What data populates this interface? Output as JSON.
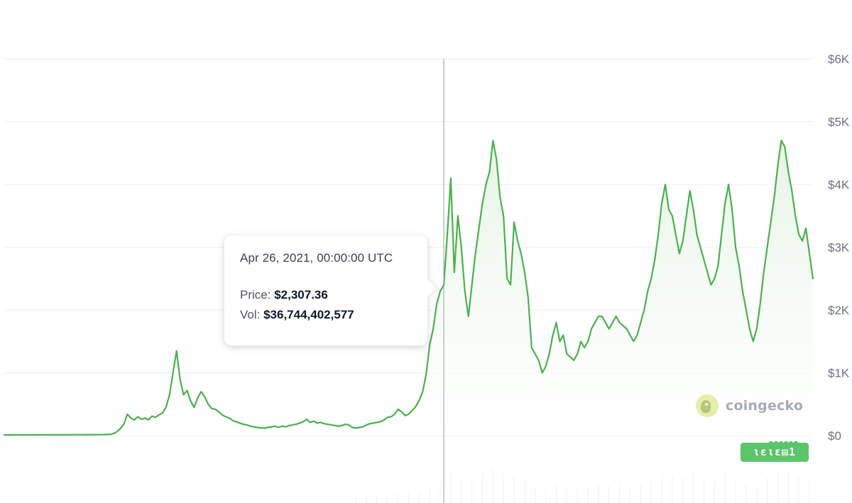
{
  "chart_data": {
    "type": "area",
    "title": "",
    "xlabel": "",
    "ylabel": "",
    "ylim": [
      0,
      6000
    ],
    "y_ticks": [
      "$6K",
      "$5K",
      "$4K",
      "$3K",
      "$2K",
      "$1K",
      "$0"
    ],
    "y_tick_values": [
      6000,
      5000,
      4000,
      3000,
      2000,
      1000,
      0
    ],
    "grid": true,
    "color": "#4caf50",
    "fill_color": "#e6f4e6",
    "series": [
      {
        "values": [
          10,
          10,
          11,
          12,
          12,
          11,
          11,
          12,
          12,
          13,
          12,
          12,
          12,
          13,
          13,
          13,
          13,
          13,
          13,
          14,
          14,
          15,
          15,
          14,
          14,
          15,
          15,
          15,
          16,
          18,
          20,
          30,
          60,
          110,
          180,
          340,
          280,
          250,
          300,
          260,
          280,
          250,
          310,
          290,
          330,
          360,
          450,
          650,
          1000,
          1350,
          900,
          650,
          720,
          550,
          450,
          600,
          700,
          620,
          500,
          430,
          420,
          380,
          330,
          300,
          280,
          240,
          220,
          200,
          180,
          170,
          150,
          140,
          130,
          120,
          120,
          130,
          140,
          150,
          130,
          150,
          140,
          160,
          170,
          180,
          200,
          220,
          260,
          210,
          230,
          200,
          210,
          190,
          180,
          170,
          160,
          150,
          160,
          180,
          170,
          130,
          120,
          130,
          140,
          170,
          190,
          200,
          210,
          220,
          250,
          290,
          300,
          340,
          420,
          380,
          320,
          340,
          400,
          460,
          560,
          700,
          980,
          1450,
          1700,
          2100,
          2300,
          2400,
          3200,
          4100,
          2600,
          3500,
          3000,
          2300,
          1900,
          2400,
          2900,
          3300,
          3700,
          4000,
          4200,
          4700,
          4400,
          3800,
          3500,
          2500,
          2400,
          3400,
          3100,
          2900,
          2600,
          2200,
          1400,
          1300,
          1200,
          1000,
          1100,
          1300,
          1600,
          1800,
          1500,
          1600,
          1300,
          1250,
          1200,
          1300,
          1500,
          1400,
          1500,
          1700,
          1800,
          1900,
          1900,
          1800,
          1700,
          1800,
          1900,
          1800,
          1750,
          1700,
          1600,
          1500,
          1600,
          1800,
          2000,
          2300,
          2500,
          2800,
          3200,
          3700,
          4000,
          3600,
          3500,
          3200,
          2900,
          3100,
          3500,
          3900,
          3600,
          3200,
          3000,
          2800,
          2600,
          2400,
          2500,
          2700,
          3200,
          3700,
          4000,
          3600,
          3000,
          2700,
          2300,
          2000,
          1700,
          1500,
          1700,
          2100,
          2600,
          3000,
          3400,
          3800,
          4300,
          4700,
          4600,
          4200,
          3900,
          3500,
          3200,
          3100,
          3300,
          2900,
          2500
        ]
      }
    ]
  },
  "crosshair_index": 125,
  "tooltip": {
    "date": "Apr 26, 2021, 00:00:00 UTC",
    "price_label": "Price:",
    "price_value": "$2,307.36",
    "vol_label": "Vol:",
    "vol_value": "$36,744,402,577"
  },
  "watermark": {
    "text": "coingecko",
    "icon": "coingecko-logo-icon"
  },
  "badge": {
    "text": "ιειε▤1"
  }
}
